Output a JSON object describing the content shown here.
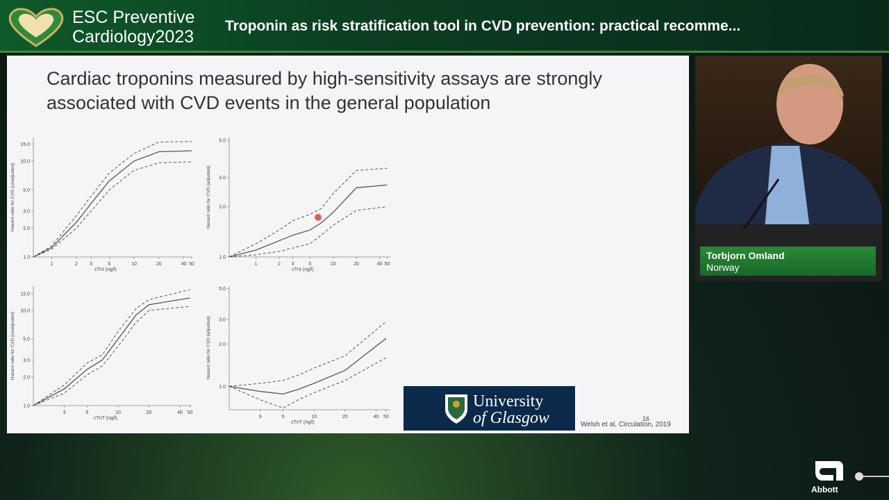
{
  "header": {
    "brand_line1": "ESC Preventive",
    "brand_line2": "Cardiology",
    "brand_year": "2023",
    "session_title": "Troponin as risk stratification tool in CVD prevention: practical recomme..."
  },
  "slide": {
    "title": "Cardiac troponins measured by high-sensitivity assays are strongly associated with CVD events in the general population",
    "logo_line1": "University",
    "logo_line2": "of Glasgow",
    "citation": "Welsh et al, Circulation, 2019",
    "page_number": "16"
  },
  "speaker": {
    "name": "Torbjorn Omland",
    "country": "Norway"
  },
  "footer": {
    "sponsor": "Abbott"
  },
  "chart_data": [
    {
      "type": "line",
      "xlabel": "cTnI (ng/l)",
      "ylabel": "Hazard ratio for CVD (unadjusted)",
      "log_x": true,
      "log_y": true,
      "x": [
        0.6,
        1,
        2,
        3,
        5,
        10,
        20,
        50
      ],
      "series": [
        {
          "color": "#555555",
          "dashed": false,
          "values": [
            1.0,
            1.25,
            2.3,
            3.6,
            6.2,
            10,
            12.5,
            12.8
          ]
        },
        {
          "color": "#555555",
          "dashed": true,
          "values": [
            1.0,
            1.3,
            2.7,
            4.3,
            7.5,
            12,
            15.8,
            16
          ]
        },
        {
          "color": "#555555",
          "dashed": true,
          "values": [
            1.0,
            1.2,
            2.0,
            3.0,
            5.0,
            8.0,
            9.6,
            9.8
          ]
        }
      ],
      "xlim": [
        0.6,
        50
      ],
      "xticks": [
        1,
        2,
        3,
        5,
        10,
        20,
        40,
        50
      ],
      "ylim": [
        1,
        17.6
      ],
      "yticks": [
        {
          "value": 1,
          "label": "1.0"
        },
        {
          "value": 2,
          "label": "2.0"
        },
        {
          "value": 3,
          "label": "3.0"
        },
        {
          "value": 5,
          "label": "5.0"
        },
        {
          "value": 10,
          "label": "10.0"
        },
        {
          "value": 15,
          "label": "15.0"
        }
      ]
    },
    {
      "type": "line",
      "xlabel": "cTnI (ng/l)",
      "ylabel": "Hazard ratio for CVD (adjusted)",
      "log_x": true,
      "log_y": true,
      "x": [
        0.45,
        1,
        2,
        3,
        5,
        7,
        10,
        20,
        50
      ],
      "series": [
        {
          "color": "#555555",
          "dashed": false,
          "values": [
            1.0,
            1.1,
            1.25,
            1.35,
            1.45,
            1.6,
            1.85,
            2.6,
            2.7
          ]
        },
        {
          "color": "#555555",
          "dashed": true,
          "values": [
            1.0,
            1.2,
            1.45,
            1.65,
            1.8,
            1.95,
            2.4,
            3.3,
            3.4
          ]
        },
        {
          "color": "#555555",
          "dashed": true,
          "values": [
            1.0,
            1.03,
            1.08,
            1.13,
            1.2,
            1.35,
            1.55,
            1.9,
            2.0
          ]
        }
      ],
      "xlim": [
        0.45,
        55
      ],
      "xticks": [
        1,
        2,
        3,
        5,
        10,
        20,
        40,
        50
      ],
      "ylim": [
        1,
        5.2
      ],
      "yticks": [
        {
          "value": 1,
          "label": "1.0"
        },
        {
          "value": 2,
          "label": "2.0"
        },
        {
          "value": 3,
          "label": "3.0"
        },
        {
          "value": 5,
          "label": "5.0"
        }
      ]
    },
    {
      "type": "line",
      "xlabel": "cTnT (ng/l)",
      "ylabel": "Hazard ratio for CVD (unadjusted)",
      "log_x": true,
      "log_y": true,
      "x": [
        1.5,
        3,
        5,
        7,
        10,
        15,
        20,
        50
      ],
      "series": [
        {
          "color": "#555555",
          "dashed": false,
          "values": [
            1.0,
            1.5,
            2.4,
            3.0,
            5.0,
            9.0,
            11.5,
            13.5
          ]
        },
        {
          "color": "#555555",
          "dashed": true,
          "values": [
            1.0,
            1.65,
            2.8,
            3.4,
            6.0,
            10.5,
            13,
            16.5
          ]
        },
        {
          "color": "#555555",
          "dashed": true,
          "values": [
            1.0,
            1.35,
            2.1,
            2.6,
            4.2,
            7.5,
            10,
            11
          ]
        }
      ],
      "xlim": [
        1.5,
        52
      ],
      "xticks": [
        3,
        5,
        10,
        20,
        40,
        50
      ],
      "ylim": [
        1,
        18
      ],
      "yticks": [
        {
          "value": 1,
          "label": "1.0"
        },
        {
          "value": 2,
          "label": "2.0"
        },
        {
          "value": 3,
          "label": "3.0"
        },
        {
          "value": 5,
          "label": "5.0"
        },
        {
          "value": 10,
          "label": "10.0"
        },
        {
          "value": 15,
          "label": "15.0"
        }
      ]
    },
    {
      "type": "line",
      "xlabel": "cTnT (ng/l)",
      "ylabel": "Hazard ratio for CVD (adjusted)",
      "log_x": true,
      "log_y": true,
      "x": [
        1.5,
        3,
        5,
        7,
        10,
        20,
        50
      ],
      "series": [
        {
          "color": "#555555",
          "dashed": false,
          "values": [
            1.0,
            0.92,
            0.88,
            0.95,
            1.05,
            1.3,
            2.2
          ]
        },
        {
          "color": "#555555",
          "dashed": true,
          "values": [
            1.0,
            1.05,
            1.1,
            1.2,
            1.35,
            1.65,
            2.9
          ]
        },
        {
          "color": "#555555",
          "dashed": true,
          "values": [
            1.0,
            0.8,
            0.7,
            0.8,
            0.9,
            1.1,
            1.6
          ]
        }
      ],
      "xlim": [
        1.5,
        55
      ],
      "xticks": [
        3,
        5,
        10,
        20,
        40,
        50
      ],
      "ylim": [
        0.68,
        5.2
      ],
      "yticks": [
        {
          "value": 1,
          "label": "1.0"
        },
        {
          "value": 2,
          "label": "2.0"
        },
        {
          "value": 3,
          "label": "3.0"
        },
        {
          "value": 5,
          "label": "5.0"
        }
      ]
    }
  ]
}
